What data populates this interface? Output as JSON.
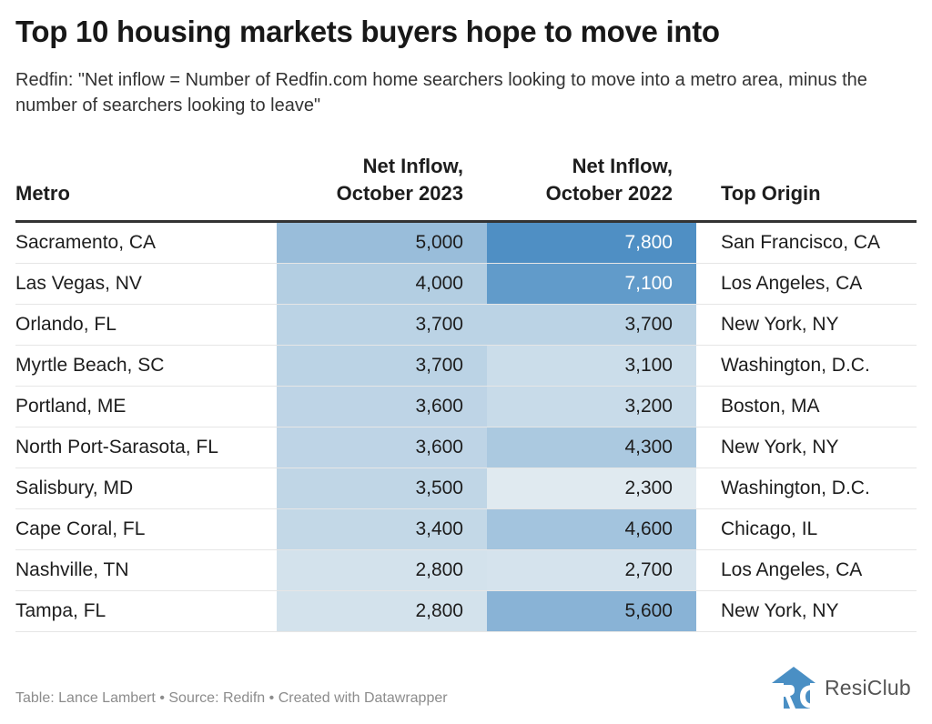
{
  "title": "Top 10 housing markets buyers hope to move into",
  "subtitle": "Redfin: \"Net inflow = Number of Redfin.com home searchers looking to move into a metro area, minus the number of searchers looking to leave\"",
  "footer": "Table: Lance Lambert • Source: Redifn • Created with Datawrapper",
  "logo": {
    "text": "ResiClub",
    "icon": "resiclub-house-logo-icon",
    "color": "#4a8fc4"
  },
  "colors": {
    "scale_low": "#e0eaf0",
    "scale_high": "#4f8fc4",
    "text_dark": "#1d1d1d",
    "text_light": "#ffffff"
  },
  "chart_data": {
    "type": "table",
    "title": "Top 10 housing markets buyers hope to move into",
    "columns": [
      "Metro",
      "Net Inflow, October 2023",
      "Net Inflow, October 2022",
      "Top Origin"
    ],
    "header_lines": [
      [
        "Metro"
      ],
      [
        "Net Inflow,",
        "October 2023"
      ],
      [
        "Net Inflow,",
        "October 2022"
      ],
      [
        "Top Origin"
      ]
    ],
    "heatmap_range": [
      2300,
      7800
    ],
    "rows": [
      {
        "metro": "Sacramento, CA",
        "oct2023": 5000,
        "oct2022": 7800,
        "origin": "San Francisco, CA"
      },
      {
        "metro": "Las Vegas, NV",
        "oct2023": 4000,
        "oct2022": 7100,
        "origin": "Los Angeles, CA"
      },
      {
        "metro": "Orlando, FL",
        "oct2023": 3700,
        "oct2022": 3700,
        "origin": "New York, NY"
      },
      {
        "metro": "Myrtle Beach, SC",
        "oct2023": 3700,
        "oct2022": 3100,
        "origin": "Washington, D.C."
      },
      {
        "metro": "Portland, ME",
        "oct2023": 3600,
        "oct2022": 3200,
        "origin": "Boston, MA"
      },
      {
        "metro": "North Port-Sarasota, FL",
        "oct2023": 3600,
        "oct2022": 4300,
        "origin": "New York, NY"
      },
      {
        "metro": "Salisbury, MD",
        "oct2023": 3500,
        "oct2022": 2300,
        "origin": "Washington, D.C."
      },
      {
        "metro": "Cape Coral, FL",
        "oct2023": 3400,
        "oct2022": 4600,
        "origin": "Chicago, IL"
      },
      {
        "metro": "Nashville, TN",
        "oct2023": 2800,
        "oct2022": 2700,
        "origin": "Los Angeles, CA"
      },
      {
        "metro": "Tampa, FL",
        "oct2023": 2800,
        "oct2022": 5600,
        "origin": "New York, NY"
      }
    ]
  }
}
